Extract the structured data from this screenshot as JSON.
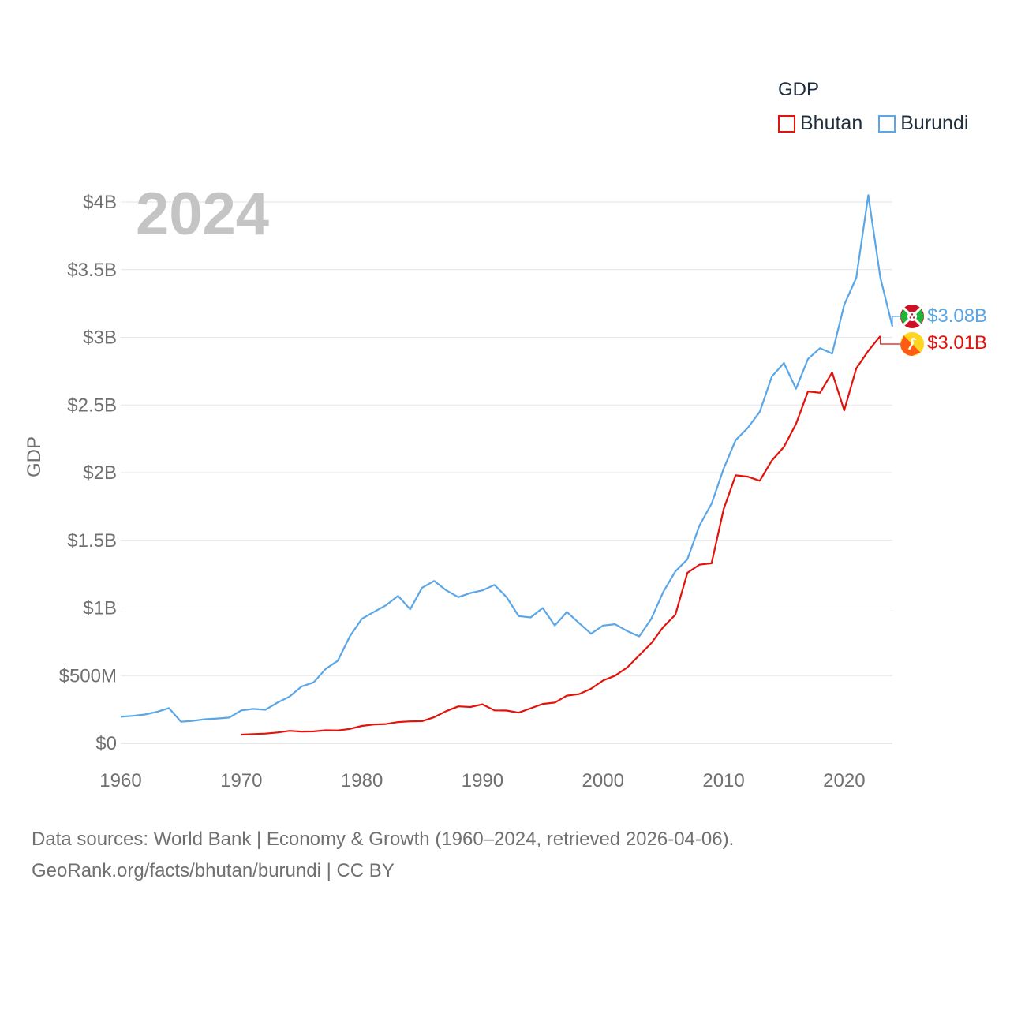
{
  "legend": {
    "title": "GDP",
    "items": [
      {
        "label": "Bhutan",
        "color": "#e3120b"
      },
      {
        "label": "Burundi",
        "color": "#5aa6e6"
      }
    ]
  },
  "year_label": "2024",
  "source": {
    "line1": "Data sources: World Bank | Economy & Growth (1960–2024, retrieved 2026-04-06).",
    "line2": "GeoRank.org/facts/bhutan/burundi | CC BY"
  },
  "chart_data": {
    "type": "line",
    "title": "GDP",
    "xlabel": "",
    "ylabel": "GDP",
    "xlim": [
      1960,
      2024
    ],
    "ylim": [
      0,
      4000000000
    ],
    "grid": true,
    "legend_position": "top-right",
    "x_ticks": [
      1960,
      1970,
      1980,
      1990,
      2000,
      2010,
      2020
    ],
    "x_tick_labels": [
      "1960",
      "1970",
      "1980",
      "1990",
      "2000",
      "2010",
      "2020"
    ],
    "y_ticks": [
      0,
      500000000,
      1000000000,
      1500000000,
      2000000000,
      2500000000,
      3000000000,
      3500000000,
      4000000000
    ],
    "y_tick_labels": [
      "$0",
      "$500M",
      "$1B",
      "$1.5B",
      "$2B",
      "$2.5B",
      "$3B",
      "$3.5B",
      "$4B"
    ],
    "series": [
      {
        "name": "Burundi",
        "color": "#5aa6e6",
        "end_label": "$3.08B",
        "x": [
          1960,
          1961,
          1962,
          1963,
          1964,
          1965,
          1966,
          1967,
          1968,
          1969,
          1970,
          1971,
          1972,
          1973,
          1974,
          1975,
          1976,
          1977,
          1978,
          1979,
          1980,
          1981,
          1982,
          1983,
          1984,
          1985,
          1986,
          1987,
          1988,
          1989,
          1990,
          1991,
          1992,
          1993,
          1994,
          1995,
          1996,
          1997,
          1998,
          1999,
          2000,
          2001,
          2002,
          2003,
          2004,
          2005,
          2006,
          2007,
          2008,
          2009,
          2010,
          2011,
          2012,
          2013,
          2014,
          2015,
          2016,
          2017,
          2018,
          2019,
          2020,
          2021,
          2022,
          2023,
          2024
        ],
        "values": [
          196000000,
          203000000,
          213000000,
          232000000,
          260000000,
          159000000,
          166000000,
          178000000,
          183000000,
          190000000,
          243000000,
          254000000,
          248000000,
          301000000,
          345000000,
          420000000,
          450000000,
          550000000,
          610000000,
          790000000,
          920000000,
          970000000,
          1020000000,
          1090000000,
          990000000,
          1150000000,
          1200000000,
          1130000000,
          1080000000,
          1110000000,
          1130000000,
          1170000000,
          1080000000,
          940000000,
          930000000,
          1000000000,
          870000000,
          970000000,
          890000000,
          810000000,
          870000000,
          880000000,
          830000000,
          790000000,
          920000000,
          1120000000,
          1270000000,
          1360000000,
          1610000000,
          1770000000,
          2030000000,
          2240000000,
          2330000000,
          2450000000,
          2710000000,
          2810000000,
          2620000000,
          2840000000,
          2920000000,
          2880000000,
          3240000000,
          3440000000,
          4050000000,
          3440000000,
          3080000000
        ]
      },
      {
        "name": "Bhutan",
        "color": "#e3120b",
        "end_label": "$3.01B",
        "x": [
          1970,
          1971,
          1972,
          1973,
          1974,
          1975,
          1976,
          1977,
          1978,
          1979,
          1980,
          1981,
          1982,
          1983,
          1984,
          1985,
          1986,
          1987,
          1988,
          1989,
          1990,
          1991,
          1992,
          1993,
          1994,
          1995,
          1996,
          1997,
          1998,
          1999,
          2000,
          2001,
          2002,
          2003,
          2004,
          2005,
          2006,
          2007,
          2008,
          2009,
          2010,
          2011,
          2012,
          2013,
          2014,
          2015,
          2016,
          2017,
          2018,
          2019,
          2020,
          2021,
          2022,
          2023
        ],
        "values": [
          64000000,
          68000000,
          72000000,
          80000000,
          92000000,
          87000000,
          88000000,
          96000000,
          95000000,
          106000000,
          128000000,
          139000000,
          142000000,
          157000000,
          162000000,
          164000000,
          193000000,
          238000000,
          273000000,
          268000000,
          288000000,
          243000000,
          242000000,
          226000000,
          259000000,
          291000000,
          301000000,
          352000000,
          363000000,
          403000000,
          464000000,
          500000000,
          560000000,
          650000000,
          740000000,
          860000000,
          950000000,
          1260000000,
          1320000000,
          1330000000,
          1730000000,
          1980000000,
          1970000000,
          1940000000,
          2090000000,
          2190000000,
          2360000000,
          2600000000,
          2590000000,
          2740000000,
          2460000000,
          2770000000,
          2900000000,
          3010000000
        ]
      }
    ]
  }
}
